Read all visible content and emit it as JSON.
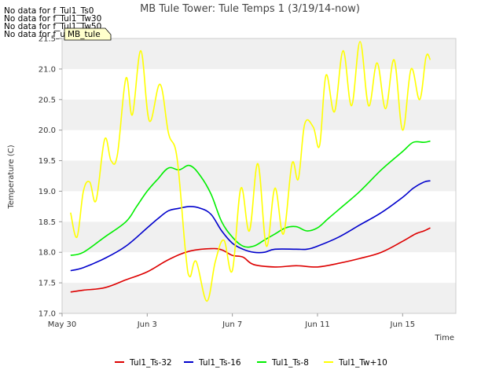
{
  "no_data_messages": [
    "No data for f_Tul1_Ts0",
    "No data for f_Tul1_Tw30",
    "No data for f_Tul1_Tw50",
    "No data for f_uMB_Tw60"
  ],
  "tooltip_label": "MB_tule",
  "chart_data": {
    "type": "line",
    "title": "MB Tule Tower: Tule Temps 1 (3/19/14-now)",
    "xlabel": "Time",
    "ylabel": "Temperature (C)",
    "xlim": [
      0,
      18.5
    ],
    "ylim": [
      17.0,
      21.5
    ],
    "yticks": [
      17.0,
      17.5,
      18.0,
      18.5,
      19.0,
      19.5,
      20.0,
      20.5,
      21.0,
      21.5
    ],
    "ytick_labels": [
      "17.0",
      "17.5",
      "18.0",
      "18.5",
      "19.0",
      "19.5",
      "20.0",
      "20.5",
      "21.0",
      "21.5"
    ],
    "xticks": [
      0,
      4,
      8,
      12,
      16
    ],
    "xtick_labels": [
      "May 30",
      "Jun 3",
      "Jun 7",
      "Jun 11",
      "Jun 15"
    ],
    "x_units": "days since May 30",
    "series": [
      {
        "name": "Tul1_Ts-32",
        "color": "#dd0000",
        "x": [
          0.4,
          1.0,
          2.0,
          3.0,
          4.0,
          5.0,
          6.0,
          7.0,
          7.5,
          8.0,
          8.5,
          9.0,
          10.0,
          11.0,
          12.0,
          13.0,
          14.0,
          15.0,
          16.0,
          16.6,
          17.0,
          17.3
        ],
        "values": [
          17.35,
          17.38,
          17.42,
          17.55,
          17.68,
          17.88,
          18.02,
          18.06,
          18.04,
          17.95,
          17.92,
          17.8,
          17.76,
          17.78,
          17.76,
          17.82,
          17.9,
          18.0,
          18.18,
          18.3,
          18.35,
          18.4
        ]
      },
      {
        "name": "Tul1_Ts-16",
        "color": "#0000cc",
        "x": [
          0.4,
          1.0,
          2.0,
          3.0,
          4.0,
          4.5,
          5.0,
          5.5,
          6.0,
          6.5,
          7.0,
          7.5,
          8.0,
          8.5,
          9.0,
          9.5,
          10.0,
          11.0,
          11.5,
          12.0,
          13.0,
          14.0,
          15.0,
          16.0,
          16.5,
          17.0,
          17.3
        ],
        "values": [
          17.7,
          17.75,
          17.9,
          18.1,
          18.4,
          18.55,
          18.68,
          18.72,
          18.75,
          18.72,
          18.62,
          18.35,
          18.15,
          18.05,
          18.0,
          18.0,
          18.05,
          18.05,
          18.05,
          18.1,
          18.25,
          18.45,
          18.65,
          18.9,
          19.05,
          19.15,
          19.17
        ]
      },
      {
        "name": "Tul1_Ts-8",
        "color": "#00ee00",
        "x": [
          0.4,
          1.0,
          2.0,
          3.0,
          3.5,
          4.0,
          4.5,
          5.0,
          5.5,
          6.0,
          6.5,
          7.0,
          7.5,
          8.0,
          8.5,
          9.0,
          9.5,
          10.0,
          10.5,
          11.0,
          11.5,
          12.0,
          12.5,
          13.0,
          14.0,
          15.0,
          16.0,
          16.5,
          17.0,
          17.3
        ],
        "values": [
          17.95,
          18.0,
          18.25,
          18.5,
          18.75,
          19.0,
          19.2,
          19.38,
          19.35,
          19.42,
          19.25,
          18.95,
          18.5,
          18.25,
          18.1,
          18.1,
          18.2,
          18.3,
          18.4,
          18.42,
          18.35,
          18.4,
          18.55,
          18.7,
          19.0,
          19.35,
          19.65,
          19.8,
          19.8,
          19.82
        ]
      },
      {
        "name": "Tul1_Tw+10",
        "color": "#ffff00",
        "x": [
          0.4,
          0.7,
          1.0,
          1.3,
          1.6,
          2.0,
          2.3,
          2.6,
          3.0,
          3.3,
          3.7,
          4.1,
          4.6,
          5.0,
          5.4,
          5.8,
          6.0,
          6.3,
          6.8,
          7.2,
          7.6,
          8.0,
          8.4,
          8.8,
          9.2,
          9.6,
          10.0,
          10.4,
          10.8,
          11.1,
          11.4,
          11.8,
          12.1,
          12.4,
          12.8,
          13.2,
          13.6,
          14.0,
          14.4,
          14.8,
          15.2,
          15.6,
          16.0,
          16.4,
          16.8,
          17.1,
          17.3
        ],
        "values": [
          18.65,
          18.25,
          19.0,
          19.15,
          18.85,
          19.85,
          19.5,
          19.6,
          20.85,
          20.25,
          21.3,
          20.15,
          20.75,
          19.95,
          19.55,
          18.0,
          17.6,
          17.85,
          17.2,
          17.85,
          18.2,
          17.7,
          19.05,
          18.35,
          19.45,
          18.1,
          19.05,
          18.3,
          19.45,
          19.2,
          20.1,
          20.05,
          19.75,
          20.9,
          20.3,
          21.3,
          20.4,
          21.45,
          20.4,
          21.1,
          20.35,
          21.15,
          20.0,
          21.0,
          20.5,
          21.2,
          21.15
        ]
      }
    ],
    "legend_position": "bottom",
    "grid": "alternating horizontal bands"
  }
}
